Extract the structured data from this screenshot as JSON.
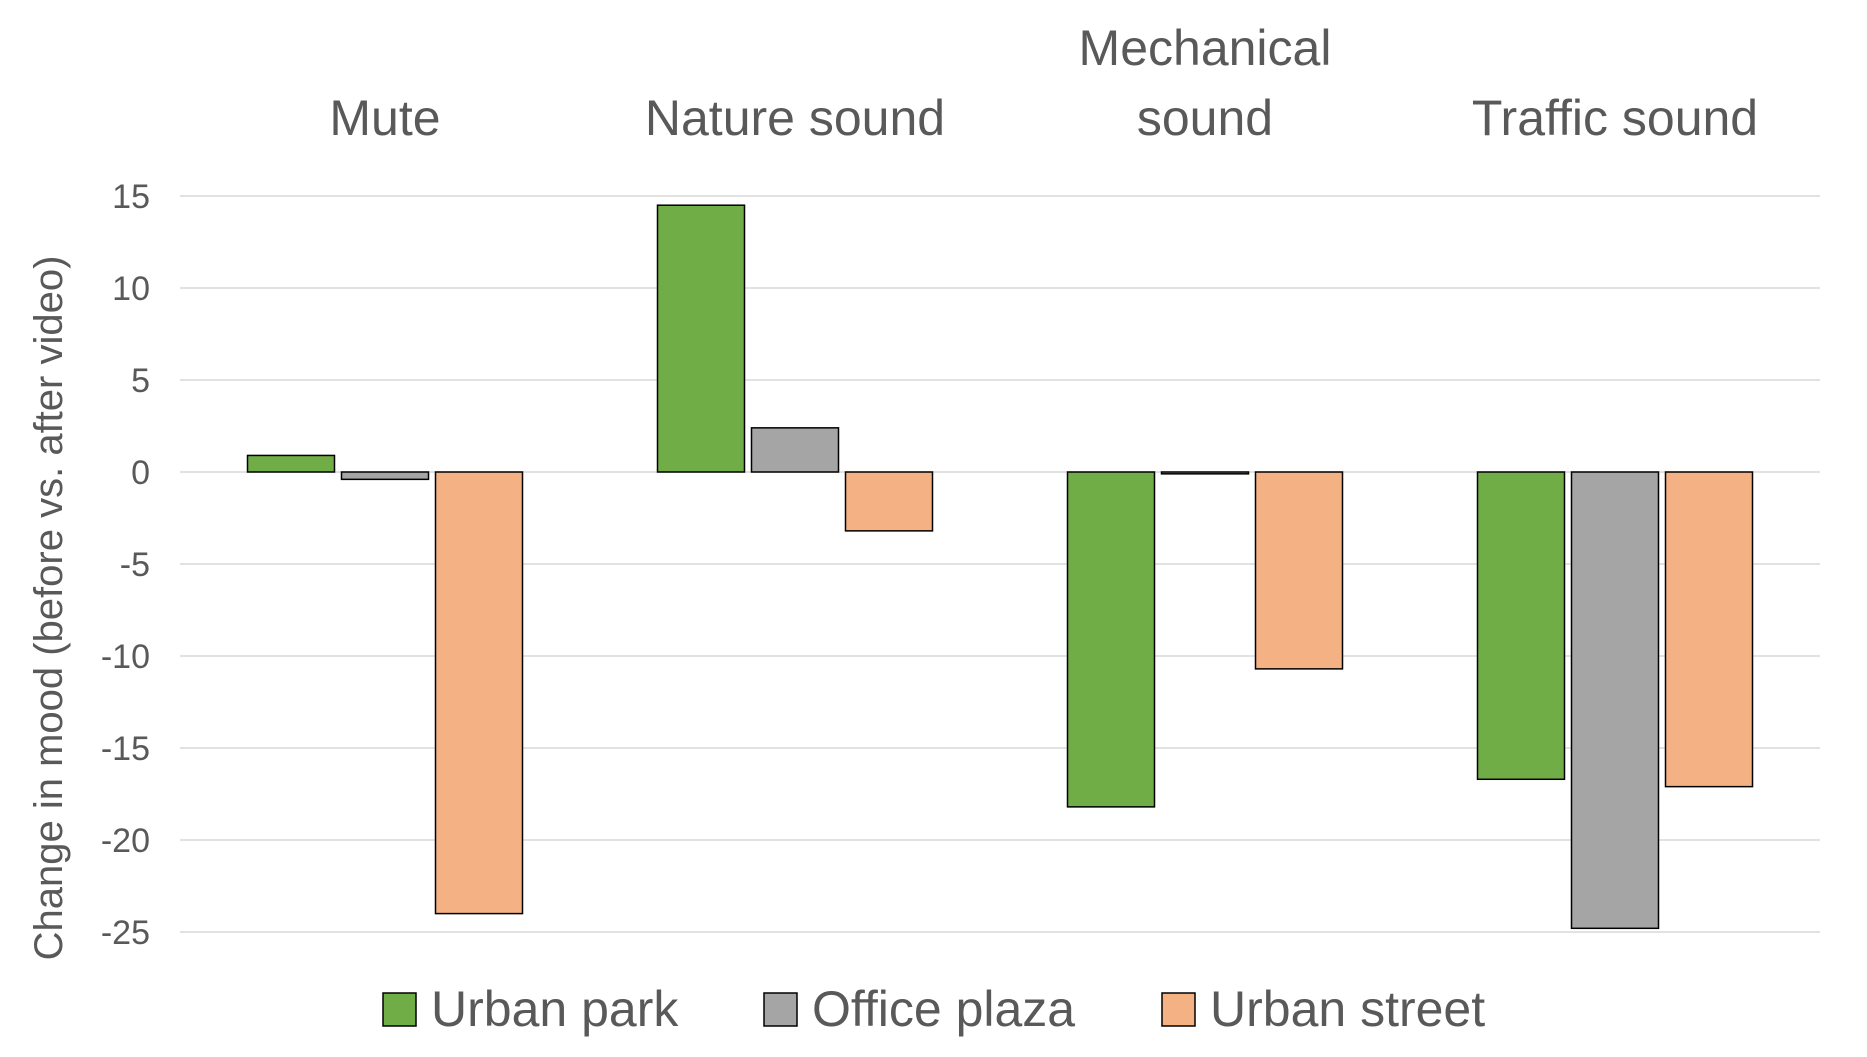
{
  "chart_data": {
    "type": "bar",
    "categories": [
      [
        "Mute"
      ],
      [
        "Nature sound"
      ],
      [
        "Mechanical",
        "sound"
      ],
      [
        "Traffic sound"
      ]
    ],
    "series": [
      {
        "name": "Urban park",
        "color": "#70ad47",
        "values": [
          0.9,
          14.5,
          -18.2,
          -16.7
        ]
      },
      {
        "name": "Office plaza",
        "color": "#a5a5a5",
        "values": [
          -0.4,
          2.4,
          -0.1,
          -24.8
        ]
      },
      {
        "name": "Urban street",
        "color": "#f4b183",
        "values": [
          -24.0,
          -3.2,
          -10.7,
          -17.1
        ]
      }
    ],
    "ylabel": "Change in mood (before vs. after video)",
    "xlabel": "",
    "ylim": [
      -25,
      15
    ],
    "yticks": [
      15,
      10,
      5,
      0,
      -5,
      -10,
      -15,
      -20,
      -25
    ],
    "grid": true,
    "gridline_color": "#d9d9d9",
    "bar_outline_color": "#000000",
    "category_labels_position": "top",
    "legend_position": "bottom"
  }
}
